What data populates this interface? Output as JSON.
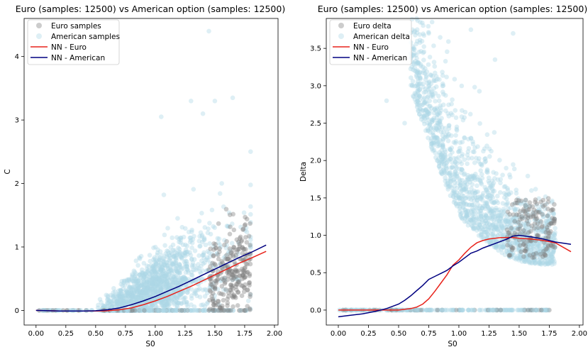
{
  "chart_data": [
    {
      "type": "scatter",
      "title": "Euro (samples: 12500) vs American option (samples: 12500)",
      "xlabel": "S0",
      "ylabel": "C",
      "xlim": [
        -0.1,
        2.03
      ],
      "ylim": [
        -0.23,
        4.6
      ],
      "xticks": [
        "0.00",
        "0.25",
        "0.50",
        "0.75",
        "1.00",
        "1.25",
        "1.50",
        "1.75",
        "2.00"
      ],
      "xtick_values": [
        0,
        0.25,
        0.5,
        0.75,
        1.0,
        1.25,
        1.5,
        1.75,
        2.0
      ],
      "yticks": [
        "0",
        "1",
        "2",
        "3",
        "4"
      ],
      "ytick_values": [
        0,
        1,
        2,
        3,
        4
      ],
      "legend_position": "top-left",
      "legend": [
        {
          "label": "Euro samples",
          "kind": "marker",
          "color": "#808080"
        },
        {
          "label": "American samples",
          "kind": "marker",
          "color": "#add8e6"
        },
        {
          "label": "NN - Euro",
          "kind": "line",
          "color": "#e8231b"
        },
        {
          "label": "NN - American",
          "kind": "line",
          "color": "#000080"
        }
      ],
      "series": [
        {
          "name": "NN - Euro",
          "color": "#e8231b",
          "x": [
            0.0,
            0.2,
            0.4,
            0.5,
            0.6,
            0.7,
            0.8,
            0.9,
            1.0,
            1.1,
            1.2,
            1.3,
            1.4,
            1.5,
            1.6,
            1.7,
            1.8,
            1.93
          ],
          "y": [
            0.0,
            -0.01,
            -0.01,
            -0.01,
            -0.005,
            0.01,
            0.04,
            0.09,
            0.15,
            0.22,
            0.3,
            0.38,
            0.47,
            0.56,
            0.65,
            0.74,
            0.82,
            0.93
          ]
        },
        {
          "name": "NN - American",
          "color": "#000080",
          "x": [
            0.0,
            0.2,
            0.4,
            0.5,
            0.6,
            0.7,
            0.8,
            0.9,
            1.0,
            1.1,
            1.2,
            1.3,
            1.4,
            1.5,
            1.6,
            1.7,
            1.8,
            1.93
          ],
          "y": [
            0.0,
            -0.01,
            -0.01,
            -0.005,
            0.01,
            0.04,
            0.09,
            0.15,
            0.22,
            0.3,
            0.38,
            0.47,
            0.56,
            0.65,
            0.74,
            0.83,
            0.91,
            1.03
          ]
        }
      ]
    },
    {
      "type": "scatter",
      "title": "Euro (samples: 12500) vs American option (samples: 12500)",
      "xlabel": "S0",
      "ylabel": "Delta",
      "xlim": [
        -0.1,
        2.03
      ],
      "ylim": [
        -0.2,
        3.9
      ],
      "xticks": [
        "0.00",
        "0.25",
        "0.50",
        "0.75",
        "1.00",
        "1.25",
        "1.50",
        "1.75",
        "2.00"
      ],
      "xtick_values": [
        0,
        0.25,
        0.5,
        0.75,
        1.0,
        1.25,
        1.5,
        1.75,
        2.0
      ],
      "yticks": [
        "0.0",
        "0.5",
        "1.0",
        "1.5",
        "2.0",
        "2.5",
        "3.0",
        "3.5"
      ],
      "ytick_values": [
        0,
        0.5,
        1.0,
        1.5,
        2.0,
        2.5,
        3.0,
        3.5
      ],
      "legend_position": "top-left",
      "legend": [
        {
          "label": "Euro delta",
          "kind": "marker",
          "color": "#808080"
        },
        {
          "label": "American delta",
          "kind": "marker",
          "color": "#add8e6"
        },
        {
          "label": "NN - Euro",
          "kind": "line",
          "color": "#e8231b"
        },
        {
          "label": "NN - American",
          "kind": "line",
          "color": "#000080"
        }
      ],
      "series": [
        {
          "name": "NN - Euro",
          "color": "#e8231b",
          "x": [
            0.0,
            0.2,
            0.4,
            0.5,
            0.6,
            0.65,
            0.7,
            0.75,
            0.8,
            0.85,
            0.9,
            0.95,
            1.0,
            1.05,
            1.1,
            1.15,
            1.2,
            1.25,
            1.3,
            1.35,
            1.4,
            1.45,
            1.5,
            1.6,
            1.7,
            1.8,
            1.93
          ],
          "y": [
            0.0,
            0.0,
            0.0,
            0.0,
            0.02,
            0.04,
            0.08,
            0.15,
            0.25,
            0.36,
            0.47,
            0.6,
            0.67,
            0.76,
            0.84,
            0.9,
            0.93,
            0.95,
            0.96,
            0.97,
            0.97,
            0.97,
            0.96,
            0.95,
            0.93,
            0.9,
            0.78
          ]
        },
        {
          "name": "NN - American",
          "color": "#000080",
          "x": [
            0.0,
            0.1,
            0.2,
            0.3,
            0.4,
            0.5,
            0.55,
            0.6,
            0.65,
            0.7,
            0.75,
            0.8,
            0.85,
            0.9,
            0.95,
            1.0,
            1.05,
            1.1,
            1.15,
            1.2,
            1.3,
            1.4,
            1.45,
            1.5,
            1.6,
            1.7,
            1.8,
            1.93
          ],
          "y": [
            -0.09,
            -0.07,
            -0.05,
            -0.02,
            0.02,
            0.08,
            0.13,
            0.19,
            0.26,
            0.33,
            0.41,
            0.45,
            0.49,
            0.53,
            0.59,
            0.64,
            0.7,
            0.76,
            0.79,
            0.83,
            0.89,
            0.95,
            0.99,
            1.0,
            0.98,
            0.95,
            0.91,
            0.88
          ]
        }
      ]
    }
  ]
}
